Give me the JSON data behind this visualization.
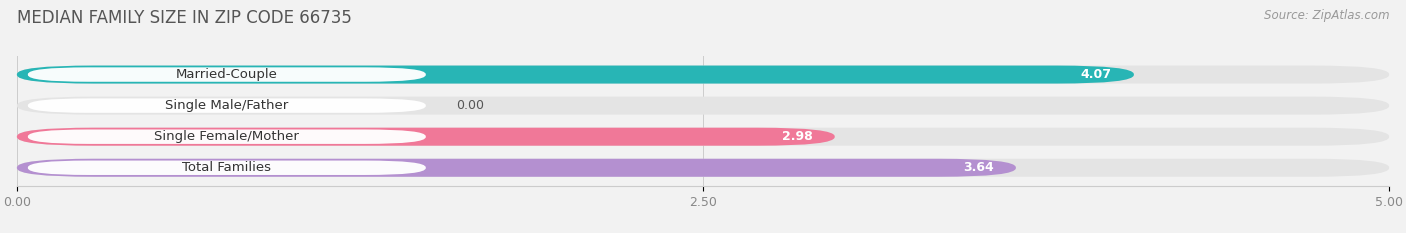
{
  "title": "MEDIAN FAMILY SIZE IN ZIP CODE 66735",
  "source": "Source: ZipAtlas.com",
  "categories": [
    "Married-Couple",
    "Single Male/Father",
    "Single Female/Mother",
    "Total Families"
  ],
  "values": [
    4.07,
    0.0,
    2.98,
    3.64
  ],
  "bar_colors": [
    "#28b5b5",
    "#a8c0ea",
    "#f07898",
    "#b490d0"
  ],
  "xlim": [
    0,
    5.0
  ],
  "xticks": [
    0.0,
    2.5,
    5.0
  ],
  "xtick_labels": [
    "0.00",
    "2.50",
    "5.00"
  ],
  "background_color": "#f2f2f2",
  "bar_background_color": "#e4e4e4",
  "title_fontsize": 12,
  "source_fontsize": 8.5,
  "label_fontsize": 9.5,
  "value_fontsize": 9
}
